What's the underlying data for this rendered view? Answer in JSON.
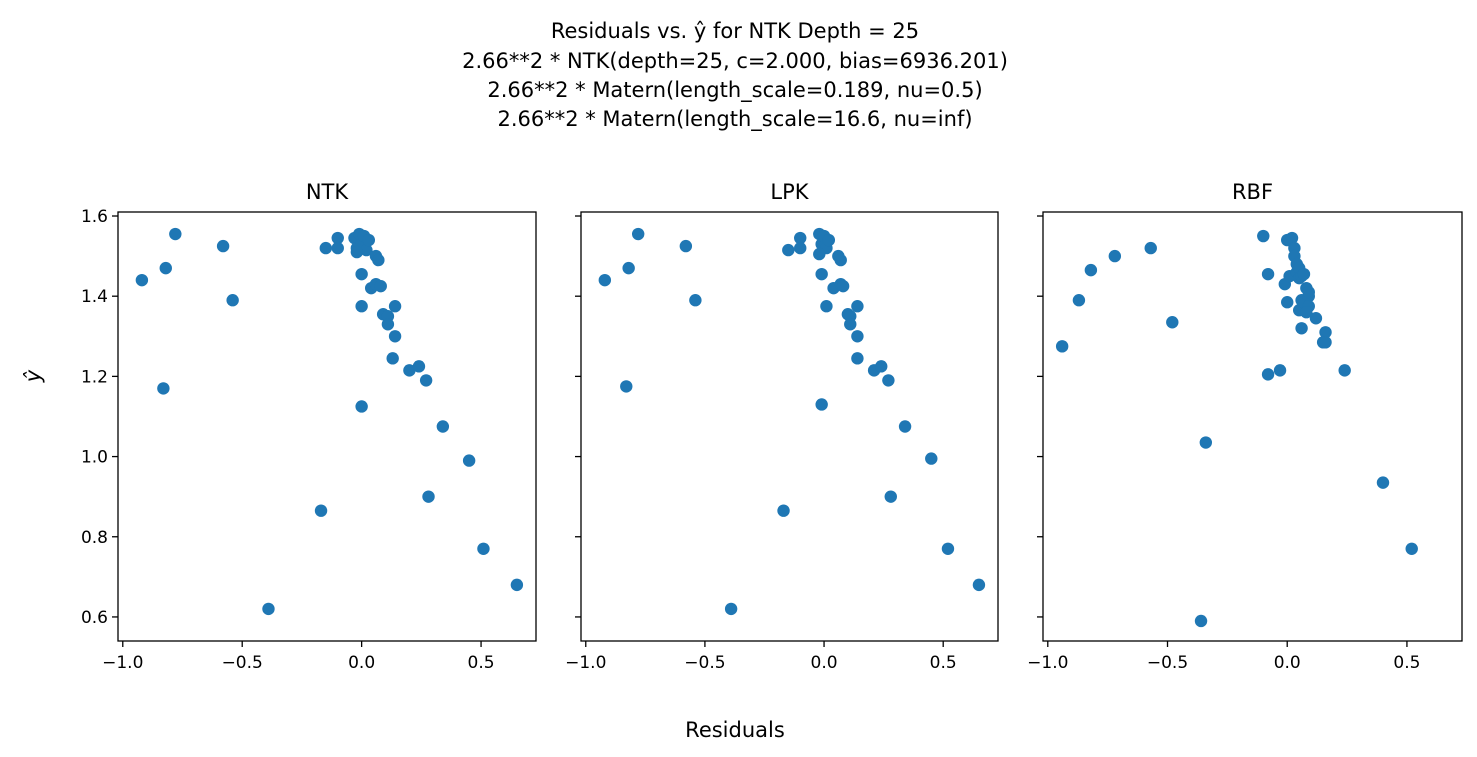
{
  "figure": {
    "title_lines": [
      "Residuals vs. ŷ for NTK Depth = 25",
      "2.66**2 * NTK(depth=25, c=2.000, bias=6936.201)",
      "2.66**2 * Matern(length_scale=0.189, nu=0.5)",
      "2.66**2 * Matern(length_scale=16.6, nu=inf)"
    ],
    "xlabel": "Residuals",
    "ylabel": "ŷ",
    "marker_color": "#1f77b4"
  },
  "chart_data": [
    {
      "type": "scatter",
      "title": "NTK",
      "xlim": [
        -1.02,
        0.73
      ],
      "ylim": [
        0.54,
        1.61
      ],
      "xticks": [
        -1.0,
        -0.5,
        0.0,
        0.5
      ],
      "xtick_labels": [
        "−1.0",
        "−0.5",
        "0.0",
        "0.5"
      ],
      "yticks": [
        0.6,
        0.8,
        1.0,
        1.2,
        1.4,
        1.6
      ],
      "ytick_labels": [
        "0.6",
        "0.8",
        "1.0",
        "1.2",
        "1.4",
        "1.6"
      ],
      "show_yticklabels": true,
      "points": [
        [
          -0.92,
          1.44
        ],
        [
          -0.82,
          1.47
        ],
        [
          -0.78,
          1.555
        ],
        [
          -0.83,
          1.17
        ],
        [
          -0.58,
          1.525
        ],
        [
          -0.54,
          1.39
        ],
        [
          -0.39,
          0.62
        ],
        [
          -0.17,
          0.865
        ],
        [
          -0.15,
          1.52
        ],
        [
          -0.1,
          1.545
        ],
        [
          -0.1,
          1.52
        ],
        [
          -0.03,
          1.545
        ],
        [
          -0.02,
          1.52
        ],
        [
          -0.01,
          1.555
        ],
        [
          0.0,
          1.53
        ],
        [
          0.01,
          1.55
        ],
        [
          0.02,
          1.515
        ],
        [
          0.03,
          1.54
        ],
        [
          -0.02,
          1.51
        ],
        [
          0.0,
          1.455
        ],
        [
          0.0,
          1.125
        ],
        [
          0.0,
          1.375
        ],
        [
          0.04,
          1.42
        ],
        [
          0.06,
          1.5
        ],
        [
          0.07,
          1.49
        ],
        [
          0.06,
          1.43
        ],
        [
          0.08,
          1.425
        ],
        [
          0.09,
          1.355
        ],
        [
          0.11,
          1.35
        ],
        [
          0.11,
          1.33
        ],
        [
          0.14,
          1.375
        ],
        [
          0.14,
          1.3
        ],
        [
          0.13,
          1.245
        ],
        [
          0.2,
          1.215
        ],
        [
          0.24,
          1.225
        ],
        [
          0.27,
          1.19
        ],
        [
          0.34,
          1.075
        ],
        [
          0.45,
          0.99
        ],
        [
          0.28,
          0.9
        ],
        [
          0.51,
          0.77
        ],
        [
          0.65,
          0.68
        ]
      ]
    },
    {
      "type": "scatter",
      "title": "LPK",
      "xlim": [
        -1.02,
        0.73
      ],
      "ylim": [
        0.54,
        1.61
      ],
      "xticks": [
        -1.0,
        -0.5,
        0.0,
        0.5
      ],
      "xtick_labels": [
        "−1.0",
        "−0.5",
        "0.0",
        "0.5"
      ],
      "yticks": [
        0.6,
        0.8,
        1.0,
        1.2,
        1.4,
        1.6
      ],
      "ytick_labels": [],
      "show_yticklabels": false,
      "points": [
        [
          -0.92,
          1.44
        ],
        [
          -0.82,
          1.47
        ],
        [
          -0.78,
          1.555
        ],
        [
          -0.83,
          1.175
        ],
        [
          -0.58,
          1.525
        ],
        [
          -0.54,
          1.39
        ],
        [
          -0.39,
          0.62
        ],
        [
          -0.17,
          0.865
        ],
        [
          -0.15,
          1.515
        ],
        [
          -0.1,
          1.545
        ],
        [
          -0.1,
          1.52
        ],
        [
          -0.02,
          1.555
        ],
        [
          -0.01,
          1.53
        ],
        [
          0.0,
          1.55
        ],
        [
          0.01,
          1.52
        ],
        [
          0.02,
          1.54
        ],
        [
          -0.02,
          1.505
        ],
        [
          -0.01,
          1.455
        ],
        [
          -0.01,
          1.13
        ],
        [
          0.01,
          1.375
        ],
        [
          0.04,
          1.42
        ],
        [
          0.06,
          1.5
        ],
        [
          0.07,
          1.49
        ],
        [
          0.07,
          1.43
        ],
        [
          0.08,
          1.425
        ],
        [
          0.1,
          1.355
        ],
        [
          0.11,
          1.35
        ],
        [
          0.11,
          1.33
        ],
        [
          0.14,
          1.375
        ],
        [
          0.14,
          1.3
        ],
        [
          0.14,
          1.245
        ],
        [
          0.21,
          1.215
        ],
        [
          0.24,
          1.225
        ],
        [
          0.27,
          1.19
        ],
        [
          0.34,
          1.075
        ],
        [
          0.45,
          0.995
        ],
        [
          0.28,
          0.9
        ],
        [
          0.52,
          0.77
        ],
        [
          0.65,
          0.68
        ]
      ]
    },
    {
      "type": "scatter",
      "title": "RBF",
      "xlim": [
        -1.02,
        0.73
      ],
      "ylim": [
        0.54,
        1.61
      ],
      "xticks": [
        -1.0,
        -0.5,
        0.0,
        0.5
      ],
      "xtick_labels": [
        "−1.0",
        "−0.5",
        "0.0",
        "0.5"
      ],
      "yticks": [
        0.6,
        0.8,
        1.0,
        1.2,
        1.4,
        1.6
      ],
      "ytick_labels": [],
      "show_yticklabels": false,
      "points": [
        [
          -0.94,
          1.275
        ],
        [
          -0.87,
          1.39
        ],
        [
          -0.82,
          1.465
        ],
        [
          -0.72,
          1.5
        ],
        [
          -0.57,
          1.52
        ],
        [
          -0.48,
          1.335
        ],
        [
          -0.36,
          0.59
        ],
        [
          -0.34,
          1.035
        ],
        [
          -0.1,
          1.55
        ],
        [
          -0.08,
          1.455
        ],
        [
          -0.08,
          1.205
        ],
        [
          -0.03,
          1.215
        ],
        [
          -0.01,
          1.43
        ],
        [
          0.0,
          1.385
        ],
        [
          0.0,
          1.54
        ],
        [
          0.01,
          1.45
        ],
        [
          0.02,
          1.545
        ],
        [
          0.03,
          1.52
        ],
        [
          0.03,
          1.5
        ],
        [
          0.04,
          1.48
        ],
        [
          0.04,
          1.46
        ],
        [
          0.05,
          1.47
        ],
        [
          0.05,
          1.445
        ],
        [
          0.06,
          1.45
        ],
        [
          0.07,
          1.455
        ],
        [
          0.05,
          1.365
        ],
        [
          0.06,
          1.39
        ],
        [
          0.07,
          1.385
        ],
        [
          0.08,
          1.42
        ],
        [
          0.09,
          1.4
        ],
        [
          0.09,
          1.41
        ],
        [
          0.09,
          1.375
        ],
        [
          0.08,
          1.36
        ],
        [
          0.06,
          1.32
        ],
        [
          0.12,
          1.345
        ],
        [
          0.16,
          1.31
        ],
        [
          0.15,
          1.285
        ],
        [
          0.16,
          1.285
        ],
        [
          0.24,
          1.215
        ],
        [
          0.4,
          0.935
        ],
        [
          0.52,
          0.77
        ]
      ]
    }
  ]
}
